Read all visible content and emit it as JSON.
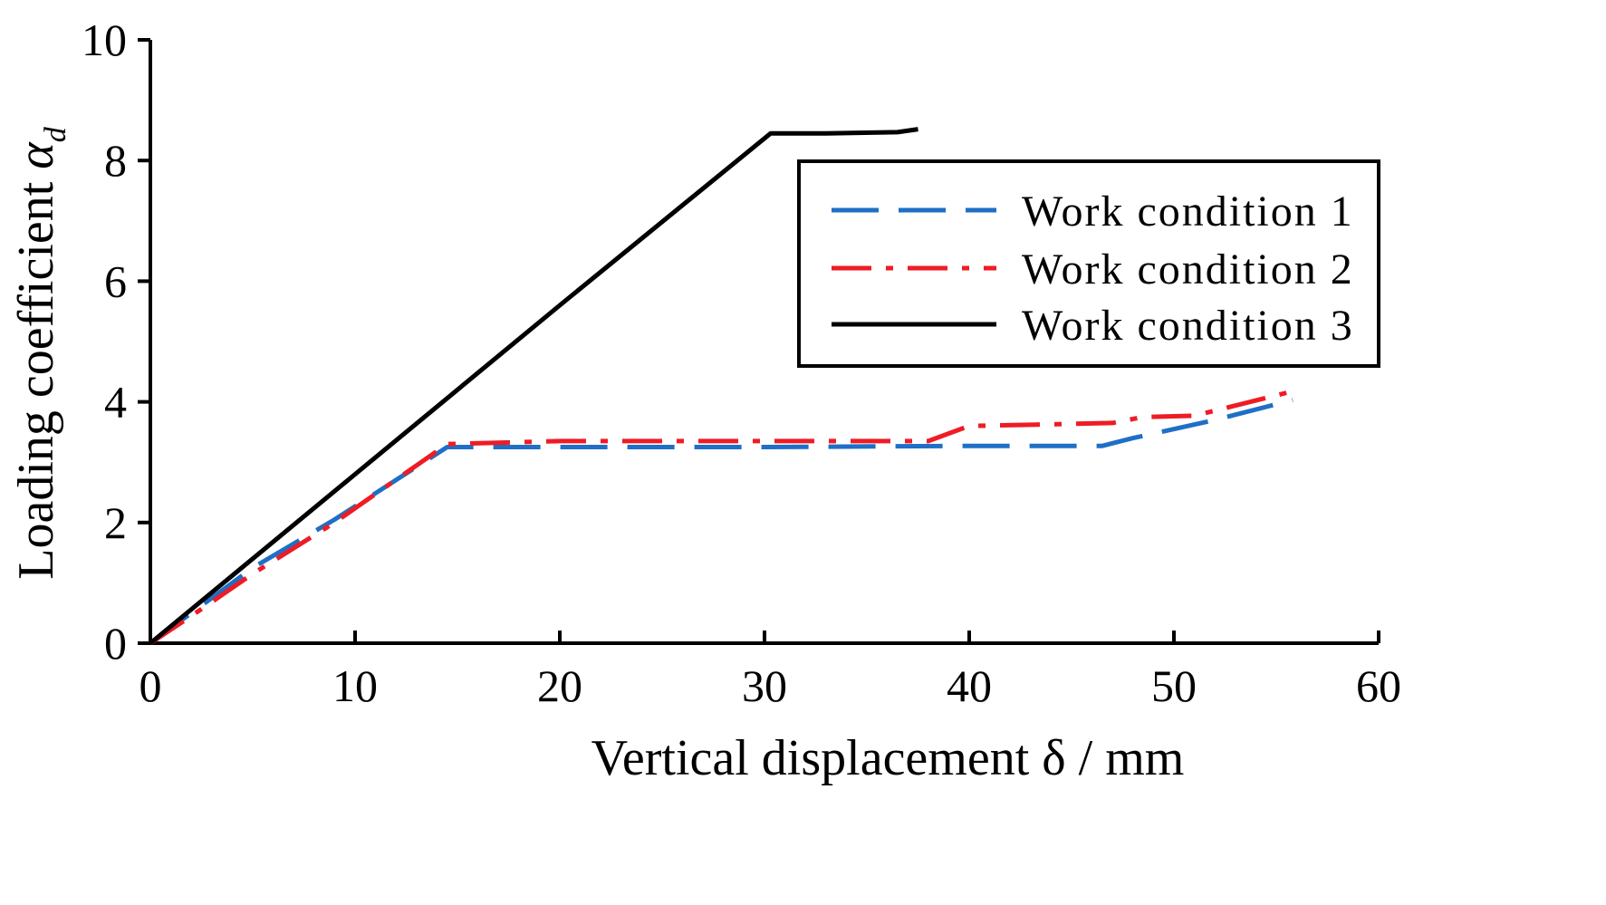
{
  "chart_data": {
    "type": "line",
    "title": "",
    "xlabel": "Vertical displacement δ / mm",
    "ylabel_main": "Loading coefficient ",
    "ylabel_symbol": "α",
    "ylabel_subscript": "d",
    "xlim": [
      0,
      60
    ],
    "ylim": [
      0,
      10
    ],
    "x_ticks": [
      0,
      10,
      20,
      30,
      40,
      50,
      60
    ],
    "y_ticks": [
      0,
      2,
      4,
      6,
      8,
      10
    ],
    "x_tick_labels": [
      "0",
      "10",
      "20",
      "30",
      "40",
      "50",
      "60"
    ],
    "y_tick_labels": [
      "0",
      "2",
      "4",
      "6",
      "8",
      "10"
    ],
    "grid": false,
    "legend_position": "top-right",
    "series": [
      {
        "name": "Work condition 1",
        "color": "#1f6fc6",
        "style": "dashed",
        "points": [
          [
            0,
            0
          ],
          [
            2,
            0.5
          ],
          [
            5,
            1.25
          ],
          [
            9,
            2.05
          ],
          [
            14.5,
            3.25
          ],
          [
            20,
            3.25
          ],
          [
            30,
            3.25
          ],
          [
            40,
            3.27
          ],
          [
            46.5,
            3.27
          ],
          [
            48,
            3.4
          ],
          [
            52,
            3.7
          ],
          [
            55.8,
            4.03
          ]
        ]
      },
      {
        "name": "Work condition 2",
        "color": "#ee1c25",
        "style": "dashdot",
        "points": [
          [
            0,
            0
          ],
          [
            2,
            0.45
          ],
          [
            5,
            1.15
          ],
          [
            9,
            2.0
          ],
          [
            14.5,
            3.3
          ],
          [
            20,
            3.35
          ],
          [
            30,
            3.35
          ],
          [
            38,
            3.35
          ],
          [
            40,
            3.6
          ],
          [
            43,
            3.62
          ],
          [
            47,
            3.65
          ],
          [
            48.5,
            3.75
          ],
          [
            51,
            3.77
          ],
          [
            55.5,
            4.15
          ]
        ]
      },
      {
        "name": "Work condition 3",
        "color": "#000000",
        "style": "solid",
        "points": [
          [
            0,
            0
          ],
          [
            10,
            2.8
          ],
          [
            20,
            5.6
          ],
          [
            30.3,
            8.45
          ],
          [
            33,
            8.45
          ],
          [
            36.5,
            8.47
          ],
          [
            37.5,
            8.52
          ]
        ]
      }
    ]
  }
}
